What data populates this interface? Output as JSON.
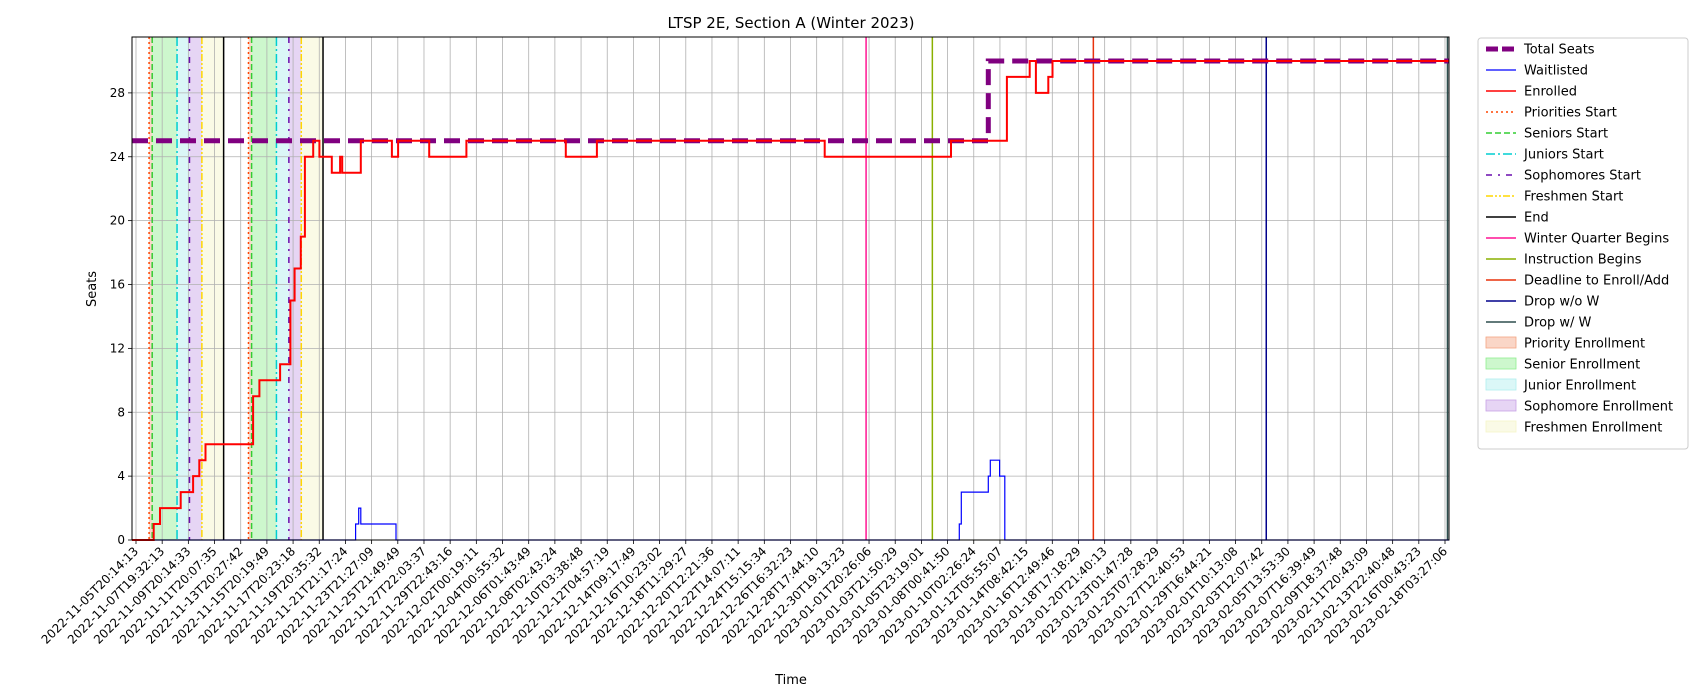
{
  "chart_data": {
    "type": "line",
    "title": "LTSP 2E, Section A (Winter 2023)",
    "xlabel": "Time",
    "ylabel": "Seats",
    "x_range": [
      "2022-11-05T14:00:00",
      "2023-02-19T14:00:00"
    ],
    "ylim": [
      0,
      31.5
    ],
    "yticks": [
      0,
      4,
      8,
      12,
      16,
      20,
      24,
      28
    ],
    "grid": true,
    "legend_position": "outside-right",
    "xtick_labels": [
      "2022-11-05T20:14:13",
      "2022-11-07T19:32:13",
      "2022-11-09T20:14:33",
      "2022-11-11T20:07:35",
      "2022-11-13T20:27:42",
      "2022-11-15T20:19:49",
      "2022-11-17T20:23:18",
      "2022-11-19T20:35:32",
      "2022-11-21T21:17:24",
      "2022-11-23T21:27:09",
      "2022-11-25T21:49:49",
      "2022-11-27T22:03:37",
      "2022-11-29T22:43:16",
      "2022-12-02T00:19:11",
      "2022-12-04T00:55:32",
      "2022-12-06T01:43:49",
      "2022-12-08T02:43:24",
      "2022-12-10T03:38:48",
      "2022-12-12T04:57:19",
      "2022-12-14T09:17:49",
      "2022-12-16T10:23:02",
      "2022-12-18T11:29:27",
      "2022-12-20T12:21:36",
      "2022-12-22T14:07:11",
      "2022-12-24T15:15:34",
      "2022-12-26T16:32:23",
      "2022-12-28T17:44:10",
      "2022-12-30T19:13:23",
      "2023-01-01T20:26:06",
      "2023-01-03T21:50:29",
      "2023-01-05T23:19:01",
      "2023-01-08T00:41:50",
      "2023-01-10T02:26:24",
      "2023-01-12T05:55:07",
      "2023-01-14T08:42:15",
      "2023-01-16T12:49:46",
      "2023-01-18T17:18:29",
      "2023-01-20T21:40:13",
      "2023-01-23T01:47:28",
      "2023-01-25T07:28:29",
      "2023-01-27T12:40:53",
      "2023-01-29T16:44:21",
      "2023-02-01T10:13:08",
      "2023-02-03T12:07:42",
      "2023-02-05T13:53:30",
      "2023-02-07T16:39:49",
      "2023-02-09T18:37:48",
      "2023-02-11T20:43:09",
      "2023-02-13T22:40:48",
      "2023-02-16T00:43:23",
      "2023-02-18T03:27:06"
    ],
    "series": [
      {
        "name": "Total Seats",
        "color": "#800080",
        "style": "dashed-thick",
        "points": [
          [
            "2022-11-05T14:00:00",
            25
          ],
          [
            "2023-01-13T12:00:00",
            25
          ],
          [
            "2023-01-13T12:00:00",
            30
          ],
          [
            "2023-02-19T14:00:00",
            30
          ]
        ]
      },
      {
        "name": "Waitlisted",
        "color": "#0000ff",
        "style": "solid-thin",
        "points": [
          [
            "2022-11-05T14:00:00",
            0
          ],
          [
            "2022-11-23T14:00:00",
            0
          ],
          [
            "2022-11-23T14:00:00",
            1
          ],
          [
            "2022-11-23T20:00:00",
            1
          ],
          [
            "2022-11-23T20:00:00",
            2
          ],
          [
            "2022-11-24T00:00:00",
            2
          ],
          [
            "2022-11-24T00:00:00",
            1
          ],
          [
            "2022-11-26T20:00:00",
            1
          ],
          [
            "2022-11-26T20:00:00",
            0
          ],
          [
            "2023-01-11T04:00:00",
            0
          ],
          [
            "2023-01-11T04:00:00",
            1
          ],
          [
            "2023-01-11T08:00:00",
            1
          ],
          [
            "2023-01-11T08:00:00",
            3
          ],
          [
            "2023-01-13T12:00:00",
            3
          ],
          [
            "2023-01-13T12:00:00",
            4
          ],
          [
            "2023-01-13T16:00:00",
            4
          ],
          [
            "2023-01-13T16:00:00",
            5
          ],
          [
            "2023-01-14T10:00:00",
            5
          ],
          [
            "2023-01-14T10:00:00",
            4
          ],
          [
            "2023-01-14T20:00:00",
            4
          ],
          [
            "2023-01-14T20:00:00",
            0
          ],
          [
            "2023-02-19T14:00:00",
            0
          ]
        ]
      },
      {
        "name": "Enrolled",
        "color": "#ff0000",
        "style": "solid",
        "points": [
          [
            "2022-11-05T14:00:00",
            0
          ],
          [
            "2022-11-07T08:00:00",
            0
          ],
          [
            "2022-11-07T08:00:00",
            1
          ],
          [
            "2022-11-07T20:00:00",
            1
          ],
          [
            "2022-11-07T20:00:00",
            2
          ],
          [
            "2022-11-09T12:00:00",
            2
          ],
          [
            "2022-11-09T12:00:00",
            3
          ],
          [
            "2022-11-10T12:00:00",
            3
          ],
          [
            "2022-11-10T12:00:00",
            4
          ],
          [
            "2022-11-11T00:00:00",
            4
          ],
          [
            "2022-11-11T00:00:00",
            5
          ],
          [
            "2022-11-11T12:00:00",
            5
          ],
          [
            "2022-11-11T12:00:00",
            6
          ],
          [
            "2022-11-15T08:00:00",
            6
          ],
          [
            "2022-11-15T08:00:00",
            9
          ],
          [
            "2022-11-15T20:00:00",
            9
          ],
          [
            "2022-11-15T20:00:00",
            10
          ],
          [
            "2022-11-17T12:00:00",
            10
          ],
          [
            "2022-11-17T12:00:00",
            11
          ],
          [
            "2022-11-18T08:00:00",
            11
          ],
          [
            "2022-11-18T08:00:00",
            15
          ],
          [
            "2022-11-18T16:00:00",
            15
          ],
          [
            "2022-11-18T16:00:00",
            17
          ],
          [
            "2022-11-19T04:00:00",
            17
          ],
          [
            "2022-11-19T04:00:00",
            19
          ],
          [
            "2022-11-19T12:00:00",
            19
          ],
          [
            "2022-11-19T12:00:00",
            24
          ],
          [
            "2022-11-20T04:00:00",
            24
          ],
          [
            "2022-11-20T04:00:00",
            25
          ],
          [
            "2022-11-20T16:00:00",
            25
          ],
          [
            "2022-11-20T16:00:00",
            24
          ],
          [
            "2022-11-21T16:00:00",
            24
          ],
          [
            "2022-11-21T16:00:00",
            23
          ],
          [
            "2022-11-22T08:00:00",
            23
          ],
          [
            "2022-11-22T08:00:00",
            24
          ],
          [
            "2022-11-22T12:00:00",
            24
          ],
          [
            "2022-11-22T12:00:00",
            23
          ],
          [
            "2022-11-24T00:00:00",
            23
          ],
          [
            "2022-11-24T00:00:00",
            25
          ],
          [
            "2022-11-26T12:00:00",
            25
          ],
          [
            "2022-11-26T12:00:00",
            24
          ],
          [
            "2022-11-27T00:00:00",
            24
          ],
          [
            "2022-11-27T00:00:00",
            25
          ],
          [
            "2022-11-29T12:00:00",
            25
          ],
          [
            "2022-11-29T12:00:00",
            24
          ],
          [
            "2022-12-02T12:00:00",
            24
          ],
          [
            "2022-12-02T12:00:00",
            25
          ],
          [
            "2022-12-10T12:00:00",
            25
          ],
          [
            "2022-12-10T12:00:00",
            24
          ],
          [
            "2022-12-13T00:00:00",
            24
          ],
          [
            "2022-12-13T00:00:00",
            25
          ],
          [
            "2022-12-31T08:00:00",
            25
          ],
          [
            "2022-12-31T08:00:00",
            24
          ],
          [
            "2023-01-10T12:00:00",
            24
          ],
          [
            "2023-01-10T12:00:00",
            25
          ],
          [
            "2023-01-15T00:00:00",
            25
          ],
          [
            "2023-01-15T00:00:00",
            29
          ],
          [
            "2023-01-16T20:00:00",
            29
          ],
          [
            "2023-01-16T20:00:00",
            30
          ],
          [
            "2023-01-17T08:00:00",
            30
          ],
          [
            "2023-01-17T08:00:00",
            28
          ],
          [
            "2023-01-18T08:00:00",
            28
          ],
          [
            "2023-01-18T08:00:00",
            29
          ],
          [
            "2023-01-18T16:00:00",
            29
          ],
          [
            "2023-01-18T16:00:00",
            30
          ],
          [
            "2023-02-19T14:00:00",
            30
          ]
        ]
      }
    ],
    "vertical_lines": [
      {
        "name": "Priorities Start",
        "color": "#ff4500",
        "style": "dotted",
        "x": [
          "2022-11-06T23:00:00",
          "2022-11-14T23:00:00"
        ]
      },
      {
        "name": "Seniors Start",
        "color": "#32cd32",
        "style": "dashed",
        "x": [
          "2022-11-07T05:00:00",
          "2022-11-15T05:00:00"
        ]
      },
      {
        "name": "Juniors Start",
        "color": "#00ced1",
        "style": "dashdot",
        "x": [
          "2022-11-09T05:00:00",
          "2022-11-17T05:00:00"
        ]
      },
      {
        "name": "Sophomores Start",
        "color": "#6a0dad",
        "style": "dashdot-loose",
        "x": [
          "2022-11-10T05:00:00",
          "2022-11-18T05:00:00"
        ]
      },
      {
        "name": "Freshmen Start",
        "color": "#ffd700",
        "style": "dashdotdot",
        "x": [
          "2022-11-11T05:00:00",
          "2022-11-19T05:00:00"
        ]
      },
      {
        "name": "End",
        "color": "#000000",
        "style": "solid",
        "x": [
          "2022-11-12T23:00:00",
          "2022-11-20T23:00:00"
        ]
      },
      {
        "name": "Winter Quarter Begins",
        "color": "#ff1493",
        "style": "solid",
        "x": [
          "2023-01-03T16:00:00"
        ]
      },
      {
        "name": "Instruction Begins",
        "color": "#8ab000",
        "style": "solid",
        "x": [
          "2023-01-09T00:00:00"
        ]
      },
      {
        "name": "Deadline to Enroll/Add",
        "color": "#e8320c",
        "style": "solid",
        "x": [
          "2023-01-21T23:00:00"
        ]
      },
      {
        "name": "Drop w/o W",
        "color": "#00008b",
        "style": "solid",
        "x": [
          "2023-02-04T21:00:00"
        ]
      },
      {
        "name": "Drop w/ W",
        "color": "#2f4f4f",
        "style": "solid",
        "x": [
          "2023-02-19T11:00:00"
        ]
      }
    ],
    "shaded_regions": [
      {
        "name": "Priority Enrollment",
        "color": "#f4a582",
        "ranges": [
          [
            "2022-11-06T23:00:00",
            "2022-11-07T05:00:00"
          ],
          [
            "2022-11-14T23:00:00",
            "2022-11-15T05:00:00"
          ]
        ]
      },
      {
        "name": "Senior Enrollment",
        "color": "#90ee90",
        "ranges": [
          [
            "2022-11-07T05:00:00",
            "2022-11-09T05:00:00"
          ],
          [
            "2022-11-15T05:00:00",
            "2022-11-17T05:00:00"
          ]
        ]
      },
      {
        "name": "Junior Enrollment",
        "color": "#afeeee",
        "ranges": [
          [
            "2022-11-09T05:00:00",
            "2022-11-10T05:00:00"
          ],
          [
            "2022-11-17T05:00:00",
            "2022-11-18T05:00:00"
          ]
        ]
      },
      {
        "name": "Sophomore Enrollment",
        "color": "#c8a2e6",
        "ranges": [
          [
            "2022-11-10T05:00:00",
            "2022-11-11T05:00:00"
          ],
          [
            "2022-11-18T05:00:00",
            "2022-11-19T05:00:00"
          ]
        ]
      },
      {
        "name": "Freshmen Enrollment",
        "color": "#f5f5c8",
        "ranges": [
          [
            "2022-11-11T05:00:00",
            "2022-11-12T23:00:00"
          ],
          [
            "2022-11-19T05:00:00",
            "2022-11-20T23:00:00"
          ]
        ]
      }
    ],
    "legend": [
      {
        "label": "Total Seats",
        "kind": "line",
        "color": "#800080",
        "style": "dashed-thick"
      },
      {
        "label": "Waitlisted",
        "kind": "line",
        "color": "#0000ff",
        "style": "solid-thin"
      },
      {
        "label": "Enrolled",
        "kind": "line",
        "color": "#ff0000",
        "style": "solid"
      },
      {
        "label": "Priorities Start",
        "kind": "line",
        "color": "#ff4500",
        "style": "dotted"
      },
      {
        "label": "Seniors Start",
        "kind": "line",
        "color": "#32cd32",
        "style": "dashed"
      },
      {
        "label": "Juniors Start",
        "kind": "line",
        "color": "#00ced1",
        "style": "dashdot"
      },
      {
        "label": "Sophomores Start",
        "kind": "line",
        "color": "#6a0dad",
        "style": "dashdot-loose"
      },
      {
        "label": "Freshmen Start",
        "kind": "line",
        "color": "#ffd700",
        "style": "dashdotdot"
      },
      {
        "label": "End",
        "kind": "line",
        "color": "#000000",
        "style": "solid"
      },
      {
        "label": "Winter Quarter Begins",
        "kind": "line",
        "color": "#ff1493",
        "style": "solid"
      },
      {
        "label": "Instruction Begins",
        "kind": "line",
        "color": "#8ab000",
        "style": "solid"
      },
      {
        "label": "Deadline to Enroll/Add",
        "kind": "line",
        "color": "#e8320c",
        "style": "solid"
      },
      {
        "label": "Drop w/o W",
        "kind": "line",
        "color": "#00008b",
        "style": "solid"
      },
      {
        "label": "Drop w/ W",
        "kind": "line",
        "color": "#2f4f4f",
        "style": "solid"
      },
      {
        "label": "Priority Enrollment",
        "kind": "patch",
        "color": "#f4a582"
      },
      {
        "label": "Senior Enrollment",
        "kind": "patch",
        "color": "#90ee90"
      },
      {
        "label": "Junior Enrollment",
        "kind": "patch",
        "color": "#afeeee"
      },
      {
        "label": "Sophomore Enrollment",
        "kind": "patch",
        "color": "#c8a2e6"
      },
      {
        "label": "Freshmen Enrollment",
        "kind": "patch",
        "color": "#f5f5c8"
      }
    ]
  }
}
